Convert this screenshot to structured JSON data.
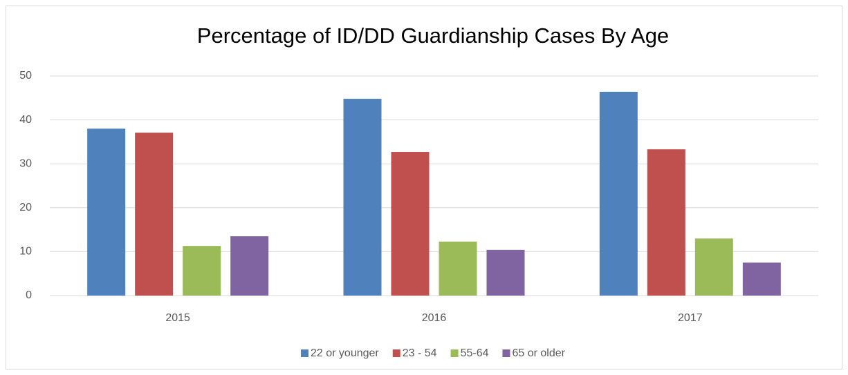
{
  "chart_data": {
    "type": "bar",
    "title": "Percentage of ID/DD Guardianship Cases By Age",
    "categories": [
      "2015",
      "2016",
      "2017"
    ],
    "series": [
      {
        "name": "22 or younger",
        "color": "#4f81bd",
        "values": [
          38.0,
          44.8,
          46.4
        ]
      },
      {
        "name": "23 - 54",
        "color": "#c0504d",
        "values": [
          37.1,
          32.7,
          33.3
        ]
      },
      {
        "name": "55-64",
        "color": "#9bbb59",
        "values": [
          11.3,
          12.3,
          13.0
        ]
      },
      {
        "name": "65 or older",
        "color": "#8064a2",
        "values": [
          13.5,
          10.4,
          7.5
        ]
      }
    ],
    "ylim": [
      0,
      50
    ],
    "yticks": [
      0,
      10,
      20,
      30,
      40,
      50
    ],
    "grid": true,
    "legend": "bottom"
  }
}
